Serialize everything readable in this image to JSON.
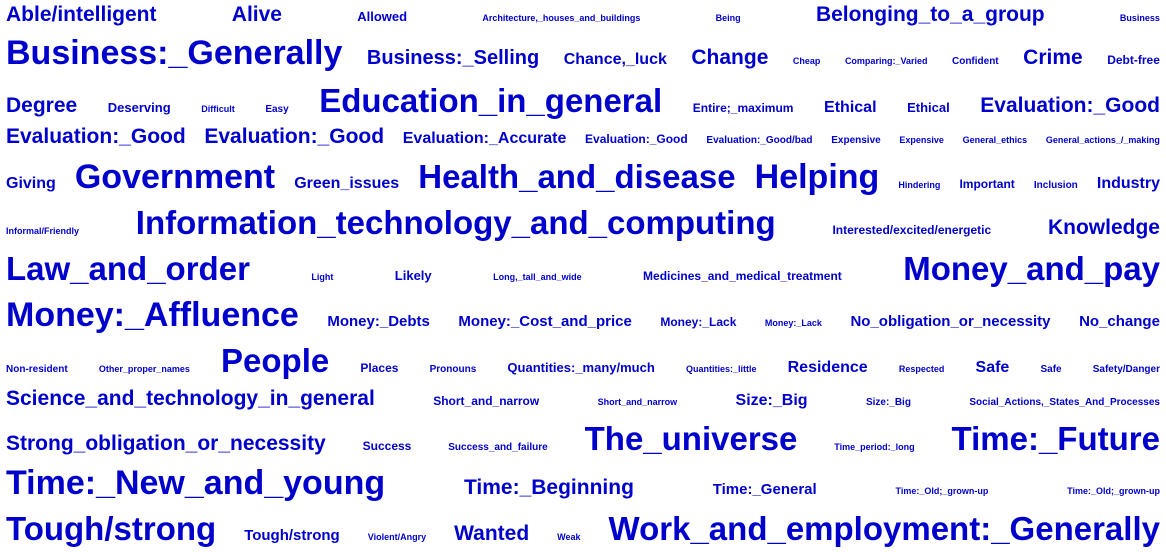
{
  "words": [
    "Able/intelligent",
    "Alive",
    "Allowed",
    "Architecture,_houses_and_buildings",
    "Being",
    "Belonging_to_a_group",
    "Business",
    "Business:_Generally",
    "Business:_Selling",
    "Chance,_luck",
    "Change",
    "Cheap",
    "Comparing:_Varied",
    "Confident",
    "Crime",
    "Debt-free",
    "Degree",
    "Deserving",
    "Difficult",
    "Easy",
    "Education_in_general",
    "Entire;_maximum",
    "Ethical",
    "Ethical",
    "Evaluation:_Good",
    "Evaluation:_Good",
    "Evaluation:_Good",
    "Evaluation:_Accurate",
    "Evaluation:_Good",
    "Evaluation:_Good/bad",
    "Expensive",
    "Expensive",
    "General_ethics",
    "General_actions_/_making",
    "Giving",
    "Government",
    "Green_issues",
    "Health_and_disease",
    "Helping",
    "Hindering",
    "Important",
    "Inclusion",
    "Industry",
    "Informal/Friendly",
    "Information_technology_and_computing",
    "Interested/excited/energetic",
    "Knowledge",
    "Law_and_order",
    "Light",
    "Likely",
    "Long,_tall_and_wide",
    "Medicines_and_medical_treatment",
    "Money_and_pay",
    "Money:_Affluence",
    "Money:_Debts",
    "Money:_Cost_and_price",
    "Money:_Lack",
    "Money:_Lack",
    "No_obligation_or_necessity",
    "No_change",
    "Non-resident",
    "Other_proper_names",
    "People",
    "Places",
    "Pronouns",
    "Quantities:_many/much",
    "Quantities:_little",
    "Residence",
    "Respected",
    "Safe",
    "Safe",
    "Safety/Danger",
    "Science_and_technology_in_general",
    "Short_and_narrow",
    "Short_and_narrow",
    "Size:_Big",
    "Size:_Big",
    "Social_Actions,_States_And_Processes",
    "Strong_obligation_or_necessity",
    "Success",
    "Success_and_failure",
    "The_universe",
    "Time_period:_long",
    "Time:_Future",
    "Time:_New_and_young",
    "Time:_Beginning",
    "Time:_General",
    "Time:_Old;_grown-up",
    "Time:_Old;_grown-up",
    "Tough/strong",
    "Tough/strong",
    "Violent/Angry",
    "Wanted",
    "Weak",
    "Work_and_employment:_Generally"
  ],
  "colors": {
    "text": "#0000cc",
    "background": "#ffffff"
  }
}
